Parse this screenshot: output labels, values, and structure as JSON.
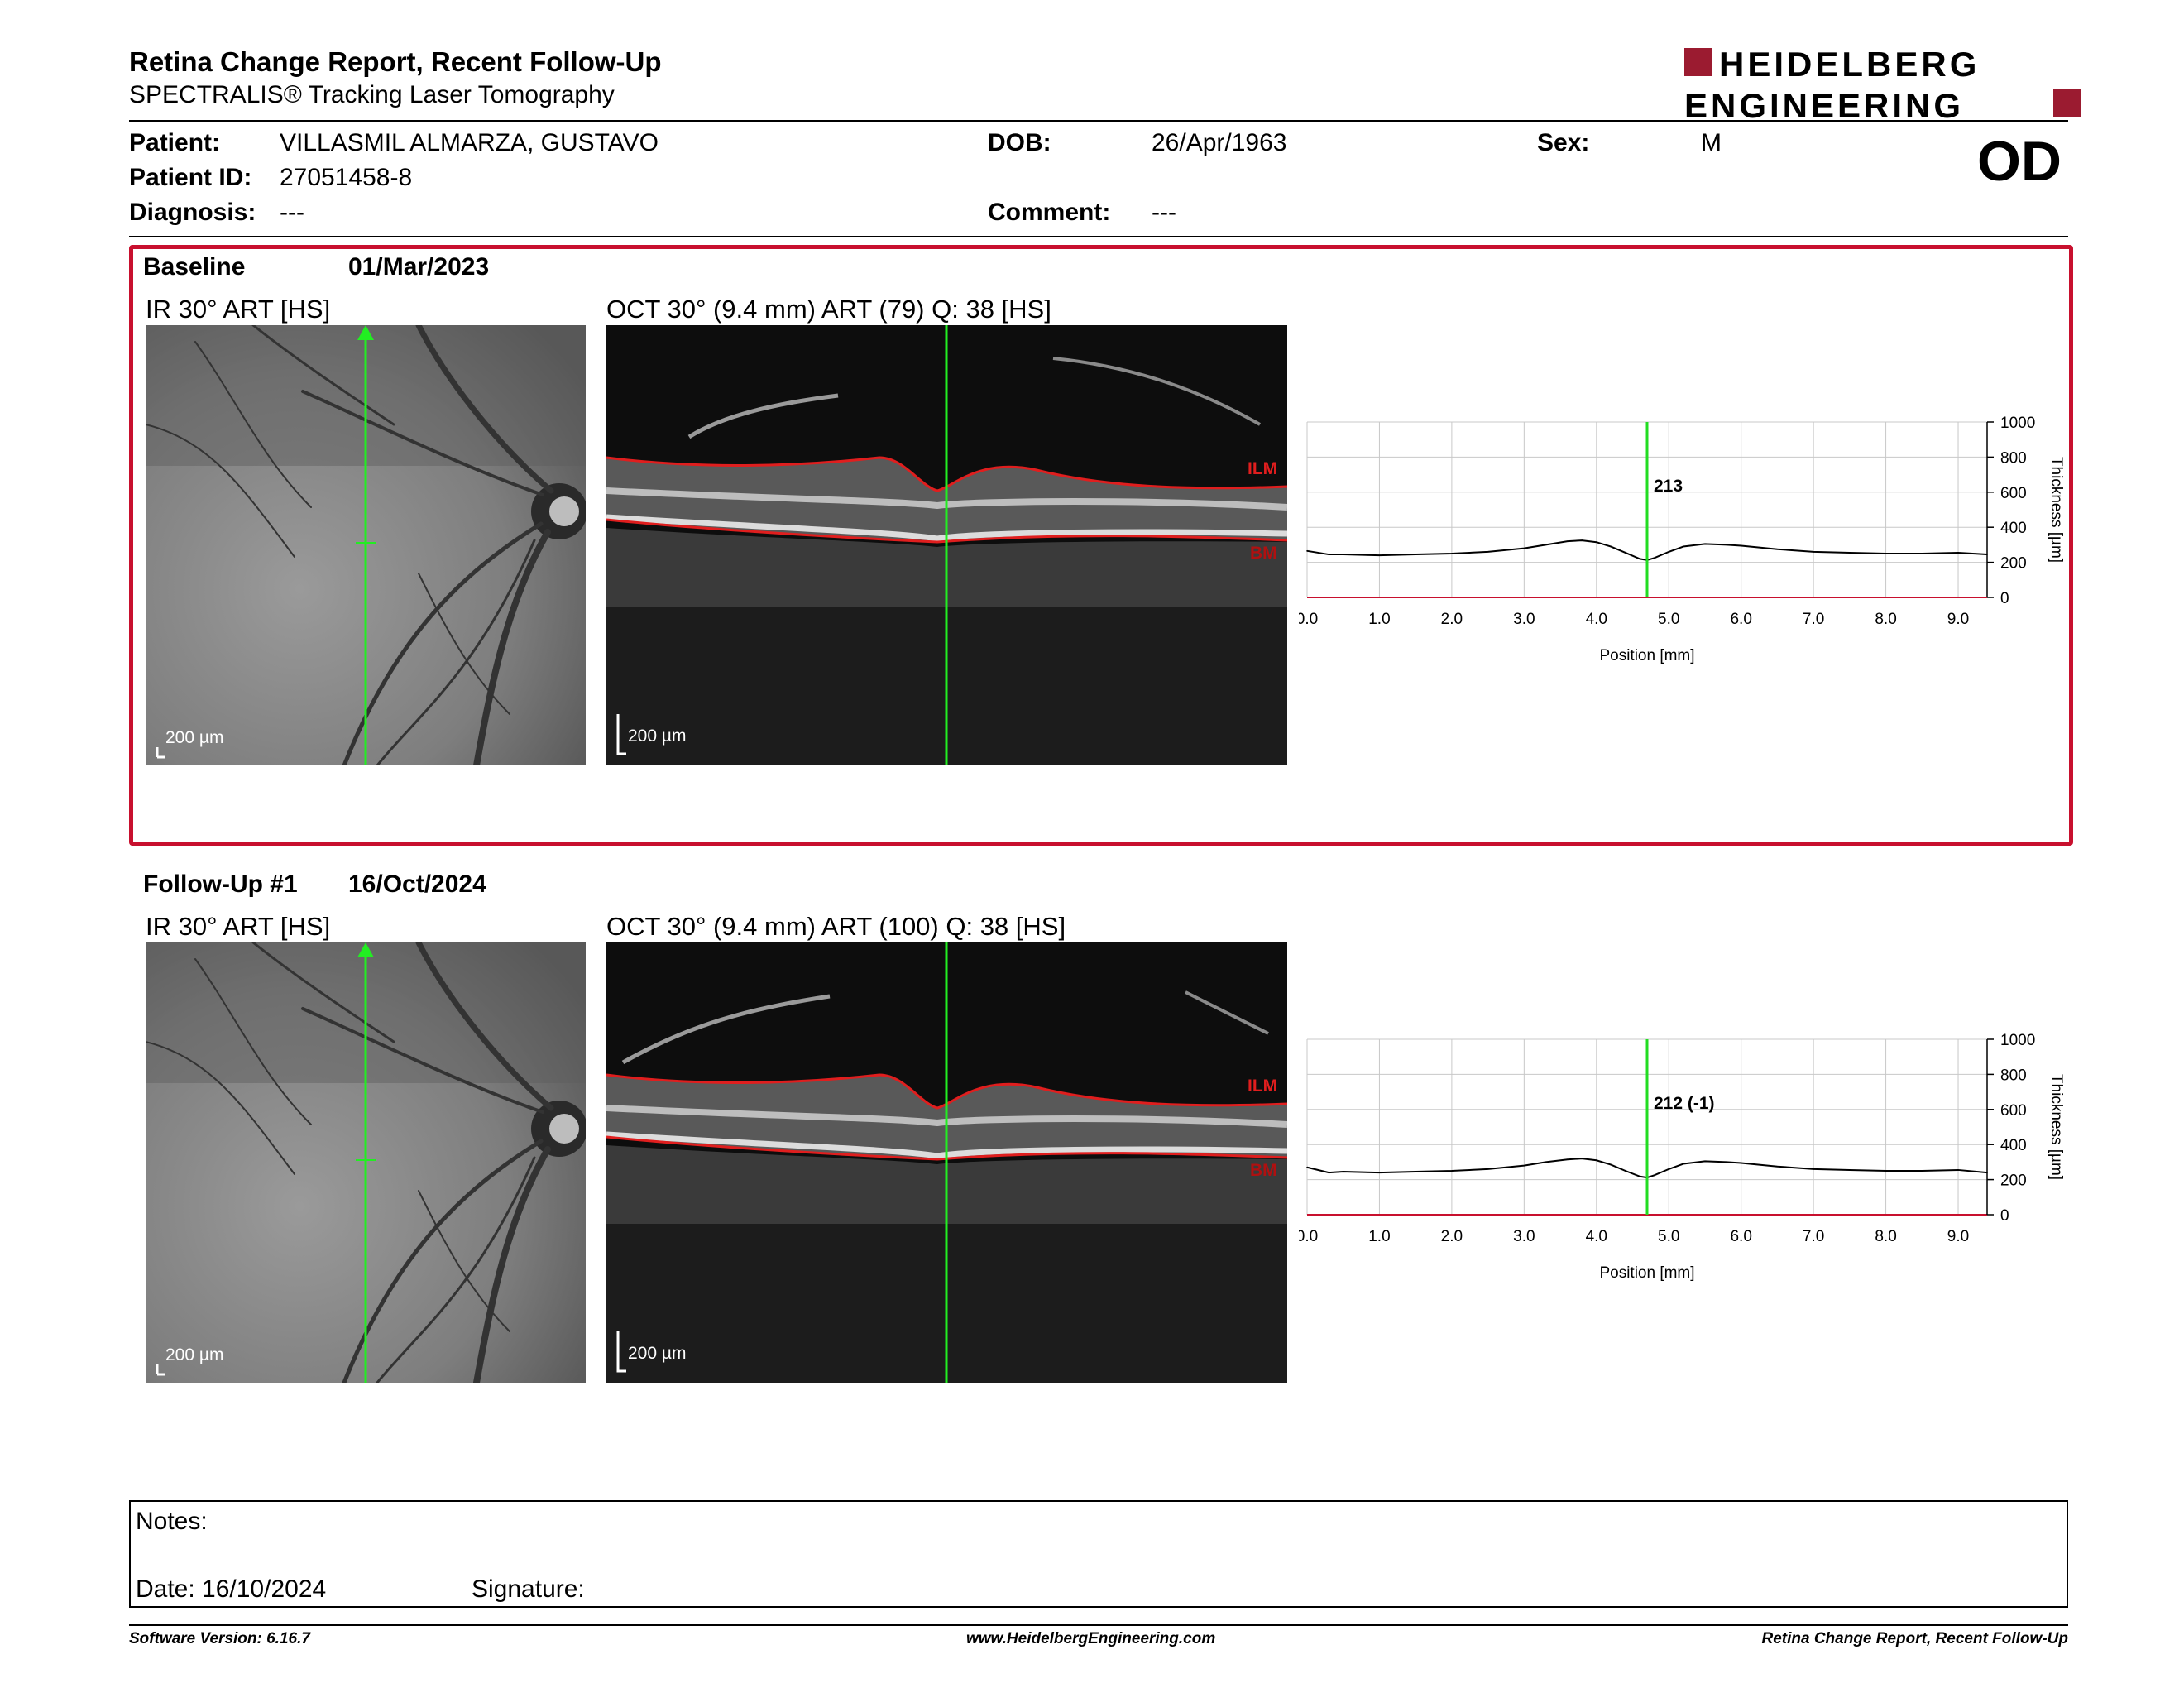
{
  "header": {
    "title": "Retina Change Report, Recent Follow-Up",
    "subtitle": "SPECTRALIS® Tracking Laser Tomography",
    "logo_text": [
      "HEIDELBERG",
      "ENGINEERING"
    ],
    "brand_color": "#9b1b30"
  },
  "patient": {
    "patient_label": "Patient:",
    "patient_value": "VILLASMIL ALMARZA, GUSTAVO",
    "id_label": "Patient ID:",
    "id_value": "27051458-8",
    "diagnosis_label": "Diagnosis:",
    "diagnosis_value": "---",
    "dob_label": "DOB:",
    "dob_value": "26/Apr/1963",
    "comment_label": "Comment:",
    "comment_value": "---",
    "sex_label": "Sex:",
    "sex_value": "M",
    "eye": "OD"
  },
  "exams": [
    {
      "label": "Baseline",
      "date": "01/Mar/2023",
      "ir_title": "IR 30° ART [HS]",
      "oct_title": "OCT 30° (9.4 mm) ART (79) Q: 38 [HS]",
      "scale_ir": "200 µm",
      "scale_oct": "200 µm",
      "ilm_label": "ILM",
      "bm_label": "BM",
      "cursor_value": "213"
    },
    {
      "label": "Follow-Up #1",
      "date": "16/Oct/2024",
      "ir_title": "IR 30° ART [HS]",
      "oct_title": "OCT 30° (9.4 mm) ART (100) Q: 38 [HS]",
      "scale_ir": "200 µm",
      "scale_oct": "200 µm",
      "ilm_label": "ILM",
      "bm_label": "BM",
      "cursor_value": "212 (-1)"
    }
  ],
  "chart_data": [
    {
      "type": "line",
      "xlabel": "Position [mm]",
      "ylabel": "Thickness [µm]",
      "xlim": [
        0,
        9.4
      ],
      "ylim": [
        0,
        1000
      ],
      "x_ticks": [
        "0.0",
        "1.0",
        "2.0",
        "3.0",
        "4.0",
        "5.0",
        "6.0",
        "7.0",
        "8.0",
        "9.0"
      ],
      "y_ticks": [
        "1000",
        "800",
        "600",
        "400",
        "200",
        "0"
      ],
      "grid": true,
      "cursor_x": 4.7,
      "cursor_label": "213",
      "x": [
        0,
        0.3,
        0.5,
        1.0,
        1.5,
        2.0,
        2.5,
        3.0,
        3.3,
        3.6,
        3.8,
        4.0,
        4.2,
        4.4,
        4.6,
        4.7,
        4.8,
        5.0,
        5.2,
        5.5,
        5.8,
        6.0,
        6.5,
        7.0,
        7.5,
        8.0,
        8.5,
        9.0,
        9.4
      ],
      "series": [
        {
          "values": [
            265,
            245,
            245,
            240,
            245,
            250,
            260,
            280,
            300,
            320,
            325,
            315,
            290,
            255,
            220,
            213,
            225,
            260,
            290,
            305,
            300,
            295,
            275,
            260,
            255,
            250,
            250,
            255,
            245
          ]
        }
      ]
    },
    {
      "type": "line",
      "xlabel": "Position [mm]",
      "ylabel": "Thickness [µm]",
      "xlim": [
        0,
        9.4
      ],
      "ylim": [
        0,
        1000
      ],
      "x_ticks": [
        "0.0",
        "1.0",
        "2.0",
        "3.0",
        "4.0",
        "5.0",
        "6.0",
        "7.0",
        "8.0",
        "9.0"
      ],
      "y_ticks": [
        "1000",
        "800",
        "600",
        "400",
        "200",
        "0"
      ],
      "grid": true,
      "cursor_x": 4.7,
      "cursor_label": "212 (-1)",
      "x": [
        0,
        0.3,
        0.5,
        1.0,
        1.5,
        2.0,
        2.5,
        3.0,
        3.3,
        3.6,
        3.8,
        4.0,
        4.2,
        4.4,
        4.6,
        4.7,
        4.8,
        5.0,
        5.2,
        5.5,
        5.8,
        6.0,
        6.5,
        7.0,
        7.5,
        8.0,
        8.5,
        9.0,
        9.4
      ],
      "series": [
        {
          "values": [
            270,
            240,
            245,
            240,
            245,
            250,
            260,
            280,
            300,
            315,
            320,
            310,
            285,
            250,
            218,
            212,
            225,
            260,
            290,
            305,
            300,
            295,
            275,
            260,
            255,
            250,
            250,
            255,
            240
          ]
        }
      ]
    }
  ],
  "notes": {
    "notes_label": "Notes:",
    "date_label": "Date: 16/10/2024",
    "signature_label": "Signature:"
  },
  "footer": {
    "software": "Software Version: 6.16.7",
    "website": "www.HeidelbergEngineering.com",
    "report": "Retina Change Report, Recent Follow-Up"
  }
}
